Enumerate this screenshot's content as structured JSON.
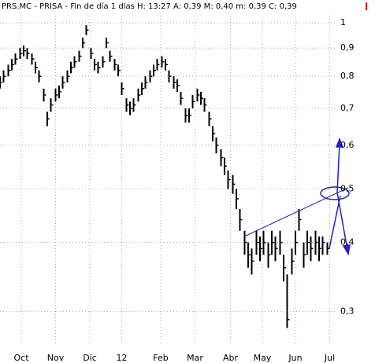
{
  "chart_data": {
    "type": "ohlc",
    "title": "PRS.MC - PRISA - Fin de día 1 días H: 13:27  A: 0,39  M: 0,40  m: 0,39  C: 0,39",
    "log_scale": true,
    "grid": true,
    "color": "#000000",
    "xlim": [
      0,
      300
    ],
    "ylim": [
      0.26,
      1.1
    ],
    "xticks": [
      {
        "value": 18,
        "label": "Oct"
      },
      {
        "value": 47,
        "label": "Nov"
      },
      {
        "value": 76,
        "label": "Dic"
      },
      {
        "value": 103,
        "label": "12"
      },
      {
        "value": 136,
        "label": "Feb"
      },
      {
        "value": 165,
        "label": "Mar"
      },
      {
        "value": 195,
        "label": "Abr"
      },
      {
        "value": 222,
        "label": "May"
      },
      {
        "value": 250,
        "label": "Jun"
      },
      {
        "value": 279,
        "label": "Jul"
      }
    ],
    "yticks": [
      1,
      {
        "value": 0.9,
        "label": "0,9"
      },
      {
        "value": 0.8,
        "label": "0,8"
      },
      {
        "value": 0.7,
        "label": "0,7"
      },
      {
        "value": 0.6,
        "label": "0,6"
      },
      {
        "value": 0.5,
        "label": "0,5"
      },
      {
        "value": 0.4,
        "label": "0,4"
      },
      {
        "value": 0.3,
        "label": "0,3"
      }
    ],
    "x": [
      0,
      3,
      7,
      10,
      13,
      17,
      20,
      23,
      27,
      30,
      33,
      37,
      40,
      43,
      47,
      50,
      53,
      57,
      60,
      63,
      67,
      70,
      73,
      77,
      80,
      83,
      87,
      90,
      93,
      97,
      100,
      103,
      107,
      110,
      113,
      117,
      120,
      123,
      127,
      130,
      133,
      137,
      140,
      143,
      147,
      150,
      153,
      157,
      160,
      163,
      167,
      170,
      173,
      177,
      180,
      183,
      187,
      190,
      193,
      197,
      200,
      203,
      207,
      210,
      213,
      217,
      220,
      223,
      227,
      230,
      233,
      237,
      240,
      243,
      247,
      250,
      253,
      257,
      260,
      263,
      267,
      270,
      273,
      277
    ],
    "high": [
      0.8,
      0.82,
      0.84,
      0.86,
      0.88,
      0.9,
      0.91,
      0.9,
      0.88,
      0.85,
      0.82,
      0.76,
      0.69,
      0.73,
      0.76,
      0.77,
      0.8,
      0.82,
      0.85,
      0.87,
      0.89,
      0.94,
      0.99,
      0.9,
      0.86,
      0.85,
      0.87,
      0.94,
      0.89,
      0.86,
      0.84,
      0.78,
      0.73,
      0.72,
      0.73,
      0.76,
      0.78,
      0.8,
      0.82,
      0.84,
      0.86,
      0.87,
      0.86,
      0.82,
      0.8,
      0.79,
      0.75,
      0.7,
      0.7,
      0.74,
      0.76,
      0.75,
      0.73,
      0.69,
      0.65,
      0.62,
      0.59,
      0.57,
      0.54,
      0.53,
      0.5,
      0.46,
      0.42,
      0.4,
      0.39,
      0.42,
      0.41,
      0.42,
      0.4,
      0.42,
      0.41,
      0.42,
      0.38,
      0.35,
      0.39,
      0.42,
      0.46,
      0.4,
      0.42,
      0.41,
      0.42,
      0.41,
      0.41,
      0.4
    ],
    "low": [
      0.76,
      0.78,
      0.8,
      0.82,
      0.84,
      0.86,
      0.87,
      0.86,
      0.84,
      0.81,
      0.78,
      0.72,
      0.65,
      0.69,
      0.72,
      0.73,
      0.76,
      0.78,
      0.81,
      0.83,
      0.85,
      0.9,
      0.95,
      0.86,
      0.82,
      0.81,
      0.83,
      0.9,
      0.85,
      0.82,
      0.8,
      0.74,
      0.69,
      0.68,
      0.69,
      0.72,
      0.74,
      0.76,
      0.78,
      0.8,
      0.82,
      0.83,
      0.82,
      0.78,
      0.76,
      0.75,
      0.71,
      0.66,
      0.66,
      0.7,
      0.72,
      0.71,
      0.69,
      0.65,
      0.61,
      0.58,
      0.55,
      0.53,
      0.5,
      0.49,
      0.46,
      0.42,
      0.38,
      0.36,
      0.35,
      0.38,
      0.37,
      0.38,
      0.36,
      0.38,
      0.37,
      0.38,
      0.34,
      0.28,
      0.35,
      0.38,
      0.42,
      0.36,
      0.38,
      0.37,
      0.38,
      0.37,
      0.38,
      0.38
    ],
    "close": [
      0.78,
      0.8,
      0.82,
      0.84,
      0.86,
      0.88,
      0.89,
      0.88,
      0.86,
      0.83,
      0.8,
      0.74,
      0.67,
      0.71,
      0.74,
      0.75,
      0.78,
      0.8,
      0.83,
      0.85,
      0.87,
      0.92,
      0.97,
      0.88,
      0.84,
      0.83,
      0.85,
      0.92,
      0.87,
      0.84,
      0.82,
      0.76,
      0.71,
      0.7,
      0.71,
      0.74,
      0.76,
      0.78,
      0.8,
      0.82,
      0.84,
      0.85,
      0.84,
      0.8,
      0.78,
      0.77,
      0.73,
      0.68,
      0.68,
      0.72,
      0.74,
      0.73,
      0.71,
      0.67,
      0.63,
      0.6,
      0.57,
      0.55,
      0.52,
      0.51,
      0.48,
      0.44,
      0.4,
      0.38,
      0.37,
      0.4,
      0.39,
      0.4,
      0.38,
      0.4,
      0.39,
      0.4,
      0.36,
      0.29,
      0.37,
      0.4,
      0.44,
      0.38,
      0.4,
      0.39,
      0.4,
      0.39,
      0.4,
      0.39
    ]
  }
}
